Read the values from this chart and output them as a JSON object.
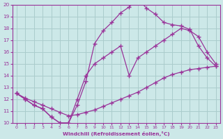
{
  "background_color": "#cce8e8",
  "grid_color": "#aacccc",
  "line_color": "#993399",
  "marker": "+",
  "xlabel": "Windchill (Refroidissement éolien,°C)",
  "xlim": [
    -0.5,
    23.5
  ],
  "ylim": [
    10,
    20
  ],
  "xticks": [
    0,
    1,
    2,
    3,
    4,
    5,
    6,
    7,
    8,
    9,
    10,
    11,
    12,
    13,
    14,
    15,
    16,
    17,
    18,
    19,
    20,
    21,
    22,
    23
  ],
  "yticks": [
    10,
    11,
    12,
    13,
    14,
    15,
    16,
    17,
    18,
    19,
    20
  ],
  "line1_x": [
    0,
    1,
    2,
    3,
    4,
    5,
    6,
    7,
    8,
    9,
    10,
    11,
    12,
    13,
    14,
    15,
    16,
    17,
    18,
    19,
    20,
    21,
    22,
    23
  ],
  "line1_y": [
    12.5,
    12.0,
    11.5,
    11.2,
    10.5,
    10.0,
    10.0,
    11.5,
    13.5,
    16.7,
    17.8,
    18.5,
    19.3,
    19.8,
    20.5,
    19.7,
    19.2,
    18.5,
    18.3,
    18.2,
    17.9,
    16.5,
    15.5,
    14.8
  ],
  "line2_x": [
    0,
    1,
    2,
    3,
    4,
    5,
    6,
    7,
    8,
    9,
    10,
    11,
    12,
    13,
    14,
    15,
    16,
    17,
    18,
    19,
    20,
    21,
    22,
    23
  ],
  "line2_y": [
    12.5,
    12.1,
    11.8,
    11.5,
    11.2,
    10.9,
    10.6,
    10.7,
    10.9,
    11.1,
    11.4,
    11.7,
    12.0,
    12.3,
    12.6,
    13.0,
    13.4,
    13.8,
    14.1,
    14.3,
    14.5,
    14.6,
    14.7,
    14.8
  ],
  "line3_x": [
    0,
    1,
    2,
    3,
    4,
    5,
    6,
    7,
    8,
    9,
    10,
    11,
    12,
    13,
    14,
    15,
    16,
    17,
    18,
    19,
    20,
    21,
    22,
    23
  ],
  "line3_y": [
    12.5,
    12.0,
    11.5,
    11.2,
    10.5,
    10.0,
    10.0,
    12.0,
    14.0,
    15.0,
    15.5,
    16.0,
    16.5,
    14.0,
    15.5,
    16.0,
    16.5,
    17.0,
    17.5,
    18.0,
    17.8,
    17.3,
    16.0,
    15.0
  ]
}
